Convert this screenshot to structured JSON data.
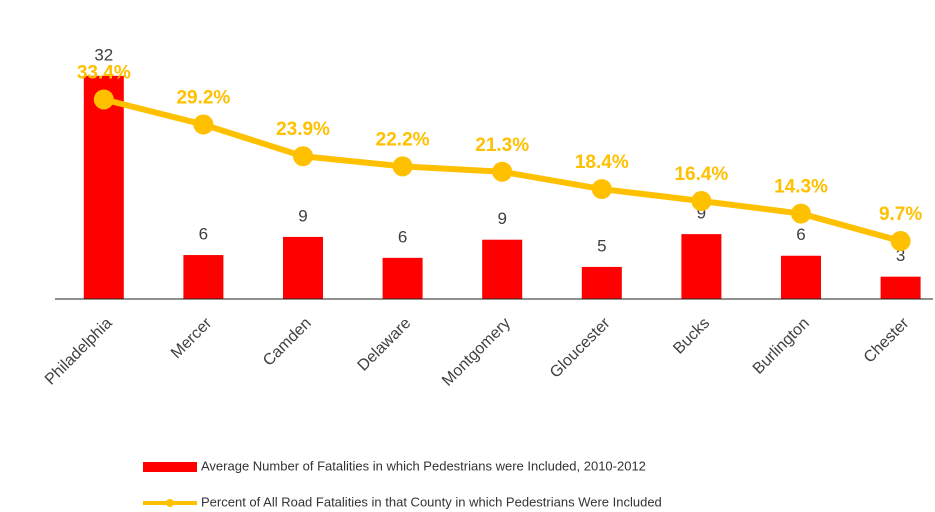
{
  "chart_data": {
    "type": "bar-line",
    "categories": [
      "Philadelphia",
      "Mercer",
      "Camden",
      "Delaware",
      "Montgomery",
      "Gloucester",
      "Bucks",
      "Burlington",
      "Chester"
    ],
    "series": [
      {
        "name": "Average Number of Fatalities in which Pedestrians were Included, 2010-2012",
        "type": "bar",
        "color": "#ff0000",
        "values": [
          32,
          6.3,
          8.9,
          5.9,
          8.5,
          4.6,
          9.3,
          6.2,
          3.2
        ],
        "value_labels": [
          "32",
          "6",
          "9",
          "6",
          "9",
          "5",
          "9",
          "6",
          "3"
        ]
      },
      {
        "name": "Percent of All Road Fatalities in that County in which Pedestrians Were Included",
        "type": "line",
        "axis": "y2",
        "color": "#ffc000",
        "values": [
          33.4,
          29.2,
          23.9,
          22.2,
          21.3,
          18.4,
          16.4,
          14.3,
          9.7
        ],
        "value_labels": [
          "33.4%",
          "29.2%",
          "23.9%",
          "22.2%",
          "21.3%",
          "18.4%",
          "16.4%",
          "14.3%",
          "9.7%"
        ]
      }
    ],
    "ylim": [
      0,
      40
    ],
    "y2lim": [
      0,
      46.7
    ]
  }
}
